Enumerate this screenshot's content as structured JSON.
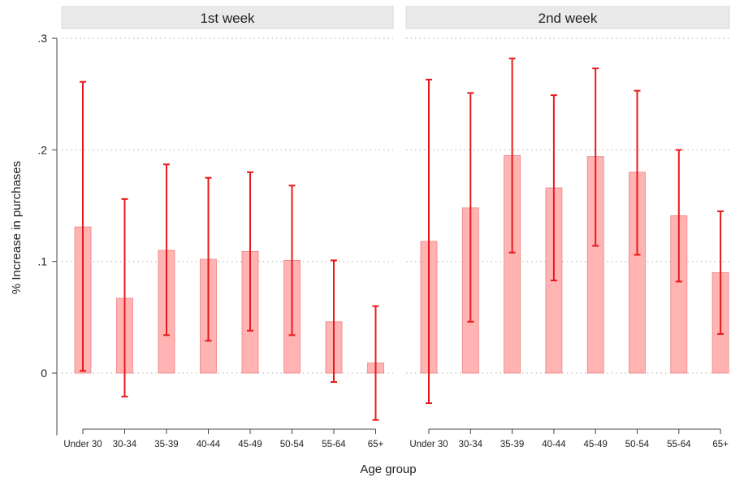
{
  "chart_data": {
    "type": "bar",
    "ylabel": "% Increase in purchases",
    "xlabel": "Age group",
    "ylim": [
      -0.05,
      0.3
    ],
    "yticks": [
      0,
      0.1,
      0.2,
      0.3
    ],
    "ytick_labels": [
      "0",
      ".1",
      ".2",
      ".3"
    ],
    "grid": "horizontal dotted",
    "categories": [
      "Under 30",
      "30-34",
      "35-39",
      "40-44",
      "45-49",
      "50-54",
      "55-64",
      "65+"
    ],
    "panels": [
      {
        "title": "1st week",
        "values": [
          0.131,
          0.067,
          0.11,
          0.102,
          0.109,
          0.101,
          0.046,
          0.009
        ],
        "ci_low": [
          0.002,
          -0.021,
          0.034,
          0.029,
          0.038,
          0.034,
          -0.008,
          -0.042
        ],
        "ci_high": [
          0.261,
          0.156,
          0.187,
          0.175,
          0.18,
          0.168,
          0.101,
          0.06
        ]
      },
      {
        "title": "2nd week",
        "values": [
          0.118,
          0.148,
          0.195,
          0.166,
          0.194,
          0.18,
          0.141,
          0.09
        ],
        "ci_low": [
          -0.027,
          0.046,
          0.108,
          0.083,
          0.114,
          0.106,
          0.082,
          0.035
        ],
        "ci_high": [
          0.263,
          0.251,
          0.282,
          0.249,
          0.273,
          0.253,
          0.2,
          0.145
        ]
      }
    ],
    "colors": {
      "bar_fill": "#ffb3b3",
      "bar_stroke": "#f08080",
      "error_bar": "#e8191a",
      "panel_header_bg": "#eaeaea",
      "panel_header_border": "#d8d8d8",
      "grid": "#b0b0b0",
      "axis": "#444444",
      "text": "#222222"
    }
  }
}
